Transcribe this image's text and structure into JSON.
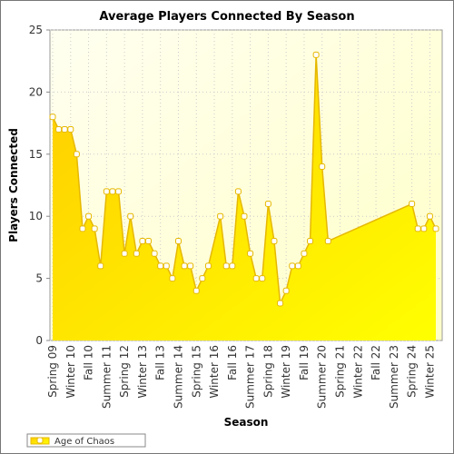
{
  "chart_data": {
    "type": "area",
    "title": "Average Players Connected By Season",
    "x_label": "Season",
    "y_label": "Players Connected",
    "categories": [
      "Spring 09",
      null,
      null,
      "Winter 10",
      null,
      null,
      "Fall 10",
      null,
      null,
      "Summer 11",
      null,
      null,
      "Spring 12",
      null,
      null,
      "Winter 13",
      null,
      null,
      "Fall 13",
      null,
      null,
      "Summer 14",
      null,
      null,
      "Spring 15",
      null,
      null,
      "Winter 16",
      null,
      null,
      "Fall 16",
      null,
      null,
      "Summer 17",
      null,
      null,
      "Spring 18",
      null,
      null,
      "Winter 19",
      null,
      null,
      "Fall 19",
      null,
      null,
      "Summer 20",
      null,
      null,
      "Spring 21",
      null,
      null,
      "Winter 22",
      null,
      null,
      "Fall 22",
      null,
      null,
      "Summer 23",
      null,
      null,
      "Spring 24",
      null,
      null,
      "Winter 25",
      null
    ],
    "series": [
      {
        "name": "Age of Chaos",
        "color": "#e6b800",
        "values": [
          18,
          17,
          17,
          17,
          15,
          9,
          10,
          9,
          6,
          12,
          12,
          12,
          7,
          10,
          7,
          8,
          8,
          7,
          6,
          6,
          5,
          8,
          6,
          6,
          4,
          5,
          6,
          null,
          10,
          6,
          6,
          12,
          10,
          7,
          5,
          5,
          11,
          8,
          3,
          4,
          6,
          6,
          7,
          8,
          23,
          14,
          8,
          null,
          null,
          null,
          null,
          null,
          null,
          null,
          null,
          null,
          null,
          null,
          null,
          null,
          11,
          9,
          9,
          10,
          9
        ]
      }
    ],
    "ylim": [
      0,
      25
    ],
    "yticks": [
      0,
      5,
      10,
      15,
      20,
      25
    ],
    "grid": true,
    "legend": "bottom-left"
  }
}
